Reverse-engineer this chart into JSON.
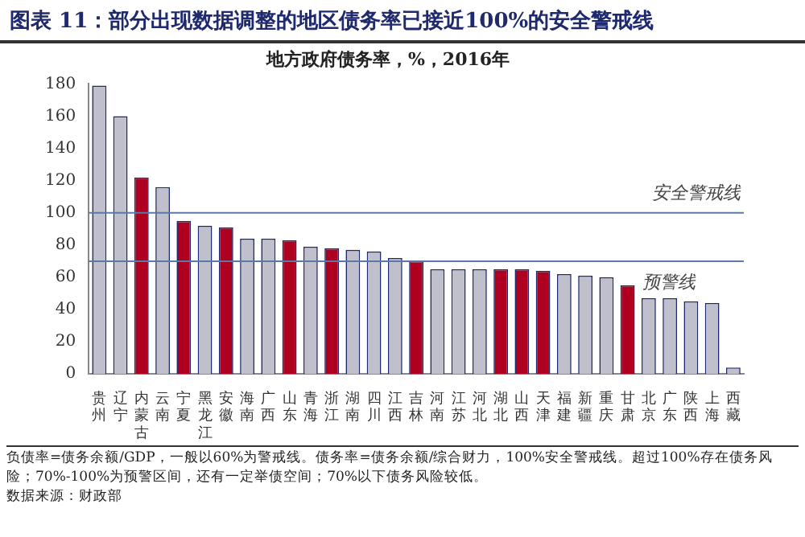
{
  "chart_data": {
    "type": "bar",
    "title": "图表 11：部分出现数据调整的地区债务率已接近100%的安全警戒线",
    "subtitle": "地方政府债务率，%，2016年",
    "categories": [
      "贵州",
      "辽宁",
      "内蒙古",
      "云南",
      "宁夏",
      "黑龙江",
      "安徽",
      "海南",
      "广西",
      "山东",
      "青海",
      "浙江",
      "湖南",
      "四川",
      "江西",
      "吉林",
      "河南",
      "江苏",
      "河北",
      "湖北",
      "山西",
      "天津",
      "福建",
      "新疆",
      "重庆",
      "甘肃",
      "北京",
      "广东",
      "陕西",
      "上海",
      "西藏"
    ],
    "values": [
      179,
      160,
      122,
      116,
      95,
      92,
      91,
      84,
      84,
      83,
      79,
      78,
      77,
      76,
      72,
      70,
      65,
      65,
      65,
      65,
      65,
      64,
      62,
      61,
      60,
      55,
      47,
      47,
      45,
      44,
      4
    ],
    "colors": [
      "#c0c0cc",
      "#c0c0cc",
      "#b00020",
      "#c0c0cc",
      "#b00020",
      "#c0c0cc",
      "#b00020",
      "#c0c0cc",
      "#c0c0cc",
      "#b00020",
      "#c0c0cc",
      "#b00020",
      "#c0c0cc",
      "#c0c0cc",
      "#c0c0cc",
      "#b00020",
      "#c0c0cc",
      "#c0c0cc",
      "#c0c0cc",
      "#b00020",
      "#b00020",
      "#b00020",
      "#c0c0cc",
      "#c0c0cc",
      "#c0c0cc",
      "#b00020",
      "#c0c0cc",
      "#c0c0cc",
      "#c0c0cc",
      "#c0c0cc",
      "#c0c0cc"
    ],
    "ylim": [
      0,
      180
    ],
    "yticks": [
      0,
      20,
      40,
      60,
      80,
      100,
      120,
      140,
      160,
      180
    ],
    "grid": false,
    "legend": false,
    "ref_lines": [
      {
        "axis": "y",
        "value": 100,
        "label": "安全警戒线",
        "color": "#5a78a8"
      },
      {
        "axis": "y",
        "value": 70,
        "label": "预警线",
        "color": "#5a78a8"
      }
    ],
    "annotations": [
      "负债率=债务余额/GDP，一般以60%为警戒线。债务率=债务余额/综合财力，100%安全警戒线。超过100%存在债务风险；70%-100%为预警区间，还有一定举债空间；70%以下债务风险较低。",
      "数据来源：财政部"
    ]
  }
}
